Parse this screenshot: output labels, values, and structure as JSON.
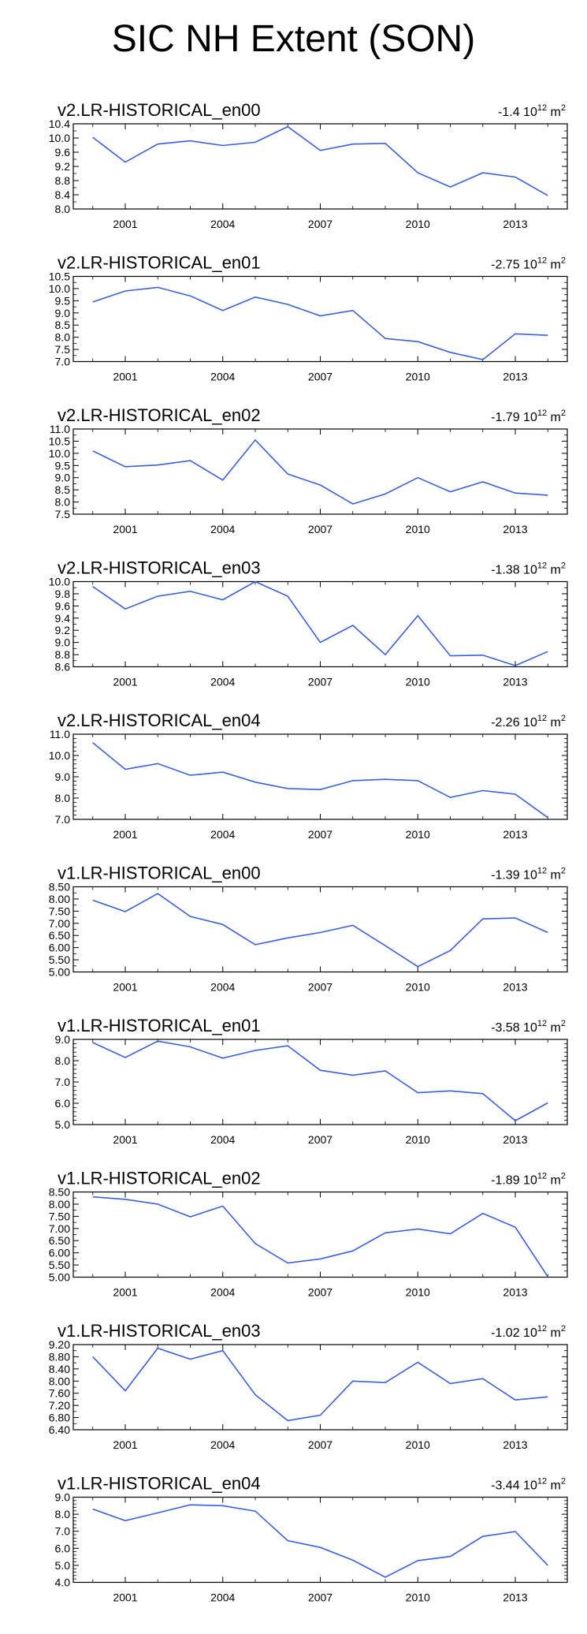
{
  "page": {
    "title": "SIC NH Extent (SON)"
  },
  "style": {
    "line_color": "#3a5fdc",
    "axis_color": "#000000",
    "background": "#ffffff"
  },
  "chart_data": [
    {
      "type": "line",
      "title": "v2.LR-HISTORICAL_en00",
      "trend": {
        "value": "-1.4",
        "unit_base": "10",
        "unit_exp": "12",
        "unit": "m",
        "unit_exp2": "2"
      },
      "x": [
        2000,
        2001,
        2002,
        2003,
        2004,
        2005,
        2006,
        2007,
        2008,
        2009,
        2010,
        2011,
        2012,
        2013,
        2014
      ],
      "values": [
        10.02,
        9.32,
        9.83,
        9.92,
        9.79,
        9.88,
        10.32,
        9.65,
        9.83,
        9.85,
        9.02,
        8.62,
        9.02,
        8.9,
        8.38
      ],
      "ylim": [
        8.0,
        10.4
      ],
      "yticks": [
        "8.0",
        "8.4",
        "8.8",
        "9.2",
        "9.6",
        "10.0",
        "10.4"
      ],
      "xticks": [
        "2001",
        "2004",
        "2007",
        "2010",
        "2013"
      ],
      "xlim": [
        1999.4,
        2014.6
      ]
    },
    {
      "type": "line",
      "title": "v2.LR-HISTORICAL_en01",
      "trend": {
        "value": "-2.75",
        "unit_base": "10",
        "unit_exp": "12",
        "unit": "m",
        "unit_exp2": "2"
      },
      "x": [
        2000,
        2001,
        2002,
        2003,
        2004,
        2005,
        2006,
        2007,
        2008,
        2009,
        2010,
        2011,
        2012,
        2013,
        2014
      ],
      "values": [
        9.45,
        9.9,
        10.05,
        9.7,
        9.1,
        9.65,
        9.35,
        8.88,
        9.1,
        7.95,
        7.82,
        7.38,
        7.08,
        8.14,
        8.08
      ],
      "ylim": [
        7.0,
        10.5
      ],
      "yticks": [
        "7.0",
        "7.5",
        "8.0",
        "8.5",
        "9.0",
        "9.5",
        "10.0",
        "10.5"
      ],
      "xticks": [
        "2001",
        "2004",
        "2007",
        "2010",
        "2013"
      ],
      "xlim": [
        1999.4,
        2014.6
      ]
    },
    {
      "type": "line",
      "title": "v2.LR-HISTORICAL_en02",
      "trend": {
        "value": "-1.79",
        "unit_base": "10",
        "unit_exp": "12",
        "unit": "m",
        "unit_exp2": "2"
      },
      "x": [
        2000,
        2001,
        2002,
        2003,
        2004,
        2005,
        2006,
        2007,
        2008,
        2009,
        2010,
        2011,
        2012,
        2013,
        2014
      ],
      "values": [
        10.1,
        9.45,
        9.52,
        9.7,
        8.9,
        10.55,
        9.15,
        8.7,
        7.92,
        8.33,
        9.0,
        8.42,
        8.83,
        8.37,
        8.28
      ],
      "ylim": [
        7.5,
        11.0
      ],
      "yticks": [
        "7.5",
        "8.0",
        "8.5",
        "9.0",
        "9.5",
        "10.0",
        "10.5",
        "11.0"
      ],
      "xticks": [
        "2001",
        "2004",
        "2007",
        "2010",
        "2013"
      ],
      "xlim": [
        1999.4,
        2014.6
      ]
    },
    {
      "type": "line",
      "title": "v2.LR-HISTORICAL_en03",
      "trend": {
        "value": "-1.38",
        "unit_base": "10",
        "unit_exp": "12",
        "unit": "m",
        "unit_exp2": "2"
      },
      "x": [
        2000,
        2001,
        2002,
        2003,
        2004,
        2005,
        2006,
        2007,
        2008,
        2009,
        2010,
        2011,
        2012,
        2013,
        2014
      ],
      "values": [
        9.92,
        9.55,
        9.76,
        9.84,
        9.7,
        10.0,
        9.76,
        9.0,
        9.28,
        8.8,
        9.44,
        8.78,
        8.79,
        8.62,
        8.85
      ],
      "ylim": [
        8.6,
        10.0
      ],
      "yticks": [
        "8.6",
        "8.8",
        "9.0",
        "9.2",
        "9.4",
        "9.6",
        "9.8",
        "10.0"
      ],
      "xticks": [
        "2001",
        "2004",
        "2007",
        "2010",
        "2013"
      ],
      "xlim": [
        1999.4,
        2014.6
      ]
    },
    {
      "type": "line",
      "title": "v2.LR-HISTORICAL_en04",
      "trend": {
        "value": "-2.26",
        "unit_base": "10",
        "unit_exp": "12",
        "unit": "m",
        "unit_exp2": "2"
      },
      "x": [
        2000,
        2001,
        2002,
        2003,
        2004,
        2005,
        2006,
        2007,
        2008,
        2009,
        2010,
        2011,
        2012,
        2013,
        2014
      ],
      "values": [
        10.6,
        9.35,
        9.62,
        9.07,
        9.22,
        8.75,
        8.45,
        8.4,
        8.82,
        8.88,
        8.82,
        8.03,
        8.35,
        8.18,
        7.08
      ],
      "ylim": [
        7.0,
        11.0
      ],
      "yticks": [
        "7.0",
        "8.0",
        "9.0",
        "10.0",
        "11.0"
      ],
      "xticks": [
        "2001",
        "2004",
        "2007",
        "2010",
        "2013"
      ],
      "xlim": [
        1999.4,
        2014.6
      ]
    },
    {
      "type": "line",
      "title": "v1.LR-HISTORICAL_en00",
      "trend": {
        "value": "-1.39",
        "unit_base": "10",
        "unit_exp": "12",
        "unit": "m",
        "unit_exp2": "2"
      },
      "x": [
        2000,
        2001,
        2002,
        2003,
        2004,
        2005,
        2006,
        2007,
        2008,
        2009,
        2010,
        2011,
        2012,
        2013,
        2014
      ],
      "values": [
        7.95,
        7.48,
        8.22,
        7.28,
        6.95,
        6.12,
        6.4,
        6.62,
        6.92,
        6.08,
        5.22,
        5.88,
        7.18,
        7.22,
        6.62
      ],
      "ylim": [
        5.0,
        8.5
      ],
      "yticks": [
        "5.00",
        "5.50",
        "6.00",
        "6.50",
        "7.00",
        "7.50",
        "8.00",
        "8.50"
      ],
      "xticks": [
        "2001",
        "2004",
        "2007",
        "2010",
        "2013"
      ],
      "xlim": [
        1999.4,
        2014.6
      ]
    },
    {
      "type": "line",
      "title": "v1.LR-HISTORICAL_en01",
      "trend": {
        "value": "-3.58",
        "unit_base": "10",
        "unit_exp": "12",
        "unit": "m",
        "unit_exp2": "2"
      },
      "x": [
        2000,
        2001,
        2002,
        2003,
        2004,
        2005,
        2006,
        2007,
        2008,
        2009,
        2010,
        2011,
        2012,
        2013,
        2014
      ],
      "values": [
        8.85,
        8.15,
        8.92,
        8.65,
        8.12,
        8.48,
        8.7,
        7.55,
        7.32,
        7.52,
        6.5,
        6.58,
        6.45,
        5.18,
        6.02
      ],
      "ylim": [
        5.0,
        9.0
      ],
      "yticks": [
        "5.0",
        "6.0",
        "7.0",
        "8.0",
        "9.0"
      ],
      "xticks": [
        "2001",
        "2004",
        "2007",
        "2010",
        "2013"
      ],
      "xlim": [
        1999.4,
        2014.6
      ]
    },
    {
      "type": "line",
      "title": "v1.LR-HISTORICAL_en02",
      "trend": {
        "value": "-1.89",
        "unit_base": "10",
        "unit_exp": "12",
        "unit": "m",
        "unit_exp2": "2"
      },
      "x": [
        2000,
        2001,
        2002,
        2003,
        2004,
        2005,
        2006,
        2007,
        2008,
        2009,
        2010,
        2011,
        2012,
        2013,
        2014
      ],
      "values": [
        8.3,
        8.2,
        8.0,
        7.48,
        7.92,
        6.38,
        5.58,
        5.75,
        6.08,
        6.82,
        6.98,
        6.78,
        7.62,
        7.05,
        5.02
      ],
      "ylim": [
        5.0,
        8.5
      ],
      "yticks": [
        "5.00",
        "5.50",
        "6.00",
        "6.50",
        "7.00",
        "7.50",
        "8.00",
        "8.50"
      ],
      "xticks": [
        "2001",
        "2004",
        "2007",
        "2010",
        "2013"
      ],
      "xlim": [
        1999.4,
        2014.6
      ]
    },
    {
      "type": "line",
      "title": "v1.LR-HISTORICAL_en03",
      "trend": {
        "value": "-1.02",
        "unit_base": "10",
        "unit_exp": "12",
        "unit": "m",
        "unit_exp2": "2"
      },
      "x": [
        2000,
        2001,
        2002,
        2003,
        2004,
        2005,
        2006,
        2007,
        2008,
        2009,
        2010,
        2011,
        2012,
        2013,
        2014
      ],
      "values": [
        8.8,
        7.68,
        9.08,
        8.72,
        9.0,
        7.55,
        6.7,
        6.88,
        8.0,
        7.95,
        8.62,
        7.92,
        8.08,
        7.38,
        7.48
      ],
      "ylim": [
        6.4,
        9.2
      ],
      "yticks": [
        "6.40",
        "6.80",
        "7.20",
        "7.60",
        "8.00",
        "8.40",
        "8.80",
        "9.20"
      ],
      "xticks": [
        "2001",
        "2004",
        "2007",
        "2010",
        "2013"
      ],
      "xlim": [
        1999.4,
        2014.6
      ]
    },
    {
      "type": "line",
      "title": "v1.LR-HISTORICAL_en04",
      "trend": {
        "value": "-3.44",
        "unit_base": "10",
        "unit_exp": "12",
        "unit": "m",
        "unit_exp2": "2"
      },
      "x": [
        2000,
        2001,
        2002,
        2003,
        2004,
        2005,
        2006,
        2007,
        2008,
        2009,
        2010,
        2011,
        2012,
        2013,
        2014
      ],
      "values": [
        8.3,
        7.62,
        8.08,
        8.55,
        8.5,
        8.18,
        6.45,
        6.05,
        5.3,
        4.3,
        5.28,
        5.52,
        6.7,
        6.98,
        5.0
      ],
      "ylim": [
        4.0,
        9.0
      ],
      "yticks": [
        "4.0",
        "5.0",
        "6.0",
        "7.0",
        "8.0",
        "9.0"
      ],
      "xticks": [
        "2001",
        "2004",
        "2007",
        "2010",
        "2013"
      ],
      "xlim": [
        1999.4,
        2014.6
      ]
    }
  ]
}
